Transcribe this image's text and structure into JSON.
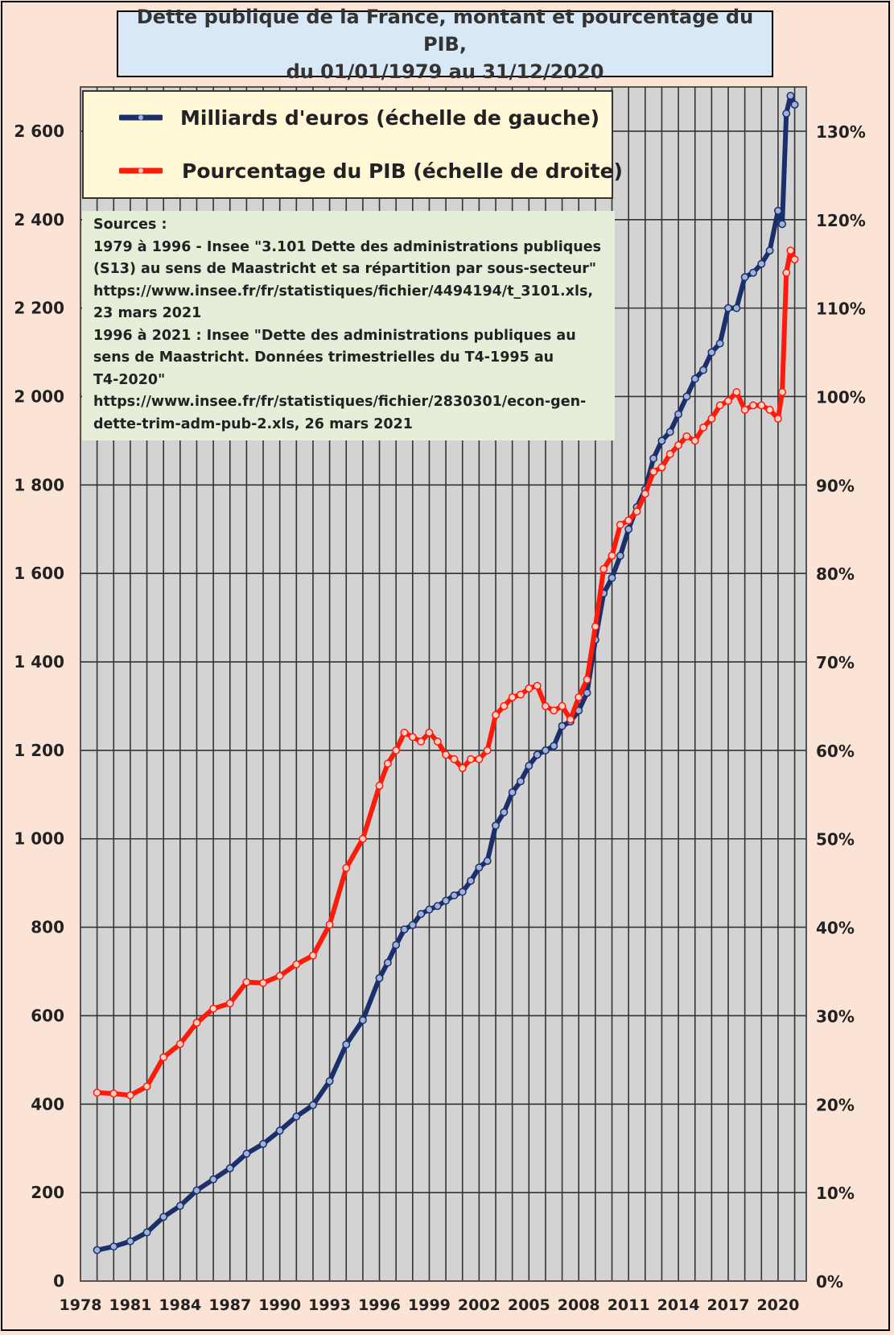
{
  "chart_data": {
    "type": "line",
    "title": [
      "Dette publique de la France, montant et pourcentage du PIB,",
      "du 01/01/1979 au 31/12/2020"
    ],
    "x_ticks": [
      "1978",
      "1981",
      "1984",
      "1987",
      "1990",
      "1993",
      "1996",
      "1999",
      "2002",
      "2005",
      "2008",
      "2011",
      "2014",
      "2017",
      "2020"
    ],
    "x_range": [
      1978,
      2021.7
    ],
    "left_axis": {
      "ylim": [
        0,
        2700
      ],
      "ticks": [
        0,
        200,
        400,
        600,
        800,
        1000,
        1200,
        1400,
        1600,
        1800,
        2000,
        2200,
        2400,
        2600
      ],
      "tick_labels": [
        "0",
        "200",
        "400",
        "600",
        "800",
        "1 000",
        "1 200",
        "1 400",
        "1 600",
        "1 800",
        "2 000",
        "2 200",
        "2 400",
        "2 600"
      ]
    },
    "right_axis": {
      "ylim": [
        0,
        135
      ],
      "ticks": [
        0,
        10,
        20,
        30,
        40,
        50,
        60,
        70,
        80,
        90,
        100,
        110,
        120,
        130
      ],
      "tick_labels": [
        "0%",
        "10%",
        "20%",
        "30%",
        "40%",
        "50%",
        "60%",
        "70%",
        "80%",
        "90%",
        "100%",
        "110%",
        "120%",
        "130%"
      ]
    },
    "series": [
      {
        "name": "Milliards d'euros (échelle de gauche)",
        "axis": "left",
        "color": "#1a2f6b",
        "points": [
          [
            1979,
            70
          ],
          [
            1980,
            78
          ],
          [
            1981,
            90
          ],
          [
            1982,
            110
          ],
          [
            1983,
            145
          ],
          [
            1984,
            170
          ],
          [
            1985,
            205
          ],
          [
            1986,
            230
          ],
          [
            1987,
            255
          ],
          [
            1988,
            288
          ],
          [
            1989,
            310
          ],
          [
            1990,
            340
          ],
          [
            1991,
            372
          ],
          [
            1992,
            398
          ],
          [
            1993,
            452
          ],
          [
            1994,
            535
          ],
          [
            1995,
            590
          ],
          [
            1996,
            685
          ],
          [
            1996.5,
            720
          ],
          [
            1997,
            760
          ],
          [
            1997.5,
            795
          ],
          [
            1998,
            805
          ],
          [
            1998.5,
            830
          ],
          [
            1999,
            840
          ],
          [
            1999.5,
            848
          ],
          [
            2000,
            860
          ],
          [
            2000.5,
            872
          ],
          [
            2001,
            880
          ],
          [
            2001.5,
            905
          ],
          [
            2002,
            935
          ],
          [
            2002.5,
            950
          ],
          [
            2003,
            1030
          ],
          [
            2003.5,
            1060
          ],
          [
            2004,
            1105
          ],
          [
            2004.5,
            1130
          ],
          [
            2005,
            1165
          ],
          [
            2005.5,
            1190
          ],
          [
            2006,
            1200
          ],
          [
            2006.5,
            1210
          ],
          [
            2007,
            1255
          ],
          [
            2007.5,
            1265
          ],
          [
            2008,
            1290
          ],
          [
            2008.5,
            1330
          ],
          [
            2009,
            1450
          ],
          [
            2009.5,
            1555
          ],
          [
            2010,
            1590
          ],
          [
            2010.5,
            1640
          ],
          [
            2011,
            1700
          ],
          [
            2011.5,
            1750
          ],
          [
            2012,
            1790
          ],
          [
            2012.5,
            1860
          ],
          [
            2013,
            1900
          ],
          [
            2013.5,
            1920
          ],
          [
            2014,
            1960
          ],
          [
            2014.5,
            2000
          ],
          [
            2015,
            2040
          ],
          [
            2015.5,
            2060
          ],
          [
            2016,
            2100
          ],
          [
            2016.5,
            2120
          ],
          [
            2017,
            2200
          ],
          [
            2017.5,
            2200
          ],
          [
            2018,
            2270
          ],
          [
            2018.5,
            2280
          ],
          [
            2019,
            2300
          ],
          [
            2019.5,
            2330
          ],
          [
            2020,
            2420
          ],
          [
            2020.25,
            2390
          ],
          [
            2020.5,
            2640
          ],
          [
            2020.75,
            2680
          ],
          [
            2021,
            2660
          ]
        ]
      },
      {
        "name": "Pourcentage du PIB (échelle de droite)",
        "axis": "right",
        "color": "#ff1a0a",
        "points": [
          [
            1979,
            21.3
          ],
          [
            1980,
            21.2
          ],
          [
            1981,
            21.0
          ],
          [
            1982,
            22.0
          ],
          [
            1983,
            25.3
          ],
          [
            1984,
            26.8
          ],
          [
            1985,
            29.2
          ],
          [
            1986,
            30.8
          ],
          [
            1987,
            31.4
          ],
          [
            1988,
            33.8
          ],
          [
            1989,
            33.7
          ],
          [
            1990,
            34.5
          ],
          [
            1991,
            35.8
          ],
          [
            1992,
            36.8
          ],
          [
            1993,
            40.3
          ],
          [
            1994,
            46.7
          ],
          [
            1995,
            50.0
          ],
          [
            1996,
            56.0
          ],
          [
            1996.5,
            58.5
          ],
          [
            1997,
            60.0
          ],
          [
            1997.5,
            62.0
          ],
          [
            1998,
            61.5
          ],
          [
            1998.5,
            61.0
          ],
          [
            1999,
            62.0
          ],
          [
            1999.5,
            61.0
          ],
          [
            2000,
            59.5
          ],
          [
            2000.5,
            59.0
          ],
          [
            2001,
            58.0
          ],
          [
            2001.5,
            59.0
          ],
          [
            2002,
            59.0
          ],
          [
            2002.5,
            60.0
          ],
          [
            2003,
            64.0
          ],
          [
            2003.5,
            65.0
          ],
          [
            2004,
            66.0
          ],
          [
            2004.5,
            66.3
          ],
          [
            2005,
            67.0
          ],
          [
            2005.5,
            67.3
          ],
          [
            2006,
            65.0
          ],
          [
            2006.5,
            64.5
          ],
          [
            2007,
            65.0
          ],
          [
            2007.5,
            63.5
          ],
          [
            2008,
            66.0
          ],
          [
            2008.5,
            68.0
          ],
          [
            2009,
            74.0
          ],
          [
            2009.5,
            80.5
          ],
          [
            2010,
            82.0
          ],
          [
            2010.5,
            85.5
          ],
          [
            2011,
            86.0
          ],
          [
            2011.5,
            87.0
          ],
          [
            2012,
            89.0
          ],
          [
            2012.5,
            91.5
          ],
          [
            2013,
            92.0
          ],
          [
            2013.5,
            93.5
          ],
          [
            2014,
            94.5
          ],
          [
            2014.5,
            95.5
          ],
          [
            2015,
            95.0
          ],
          [
            2015.5,
            96.5
          ],
          [
            2016,
            97.5
          ],
          [
            2016.5,
            99.0
          ],
          [
            2017,
            99.5
          ],
          [
            2017.5,
            100.5
          ],
          [
            2018,
            98.5
          ],
          [
            2018.5,
            99.0
          ],
          [
            2019,
            99.0
          ],
          [
            2019.5,
            98.5
          ],
          [
            2020,
            97.5
          ],
          [
            2020.25,
            100.5
          ],
          [
            2020.5,
            114.0
          ],
          [
            2020.75,
            116.5
          ],
          [
            2021,
            115.5
          ]
        ]
      }
    ]
  },
  "legend": {
    "entries": [
      {
        "label": "Milliards d'euros (échelle de gauche)",
        "color": "#1a2f6b"
      },
      {
        "label": "Pourcentage du PIB (échelle de droite)",
        "color": "#ff1a0a"
      }
    ]
  },
  "sources": {
    "lines": [
      "Sources :",
      "1979 à 1996 - Insee \"3.101 Dette des administrations publiques",
      "(S13) au sens de Maastricht et sa répartition par sous-secteur\"",
      "https://www.insee.fr/fr/statistiques/fichier/4494194/t_3101.xls,",
      "23 mars 2021",
      "1996 à 2021 : Insee \"Dette des administrations publiques au",
      "sens de Maastricht. Données trimestrielles du T4-1995 au",
      "T4-2020\"",
      "https://www.insee.fr/fr/statistiques/fichier/2830301/econ-gen-",
      "dette-trim-adm-pub-2.xls, 26 mars 2021"
    ]
  },
  "colors": {
    "background": "#fbe3d5",
    "plot_bg": "#d3d3d3",
    "grid": "#333333",
    "title_bg": "#d8e8f6",
    "legend_bg": "#fff7d6",
    "sources_bg": "#e4eed8"
  }
}
